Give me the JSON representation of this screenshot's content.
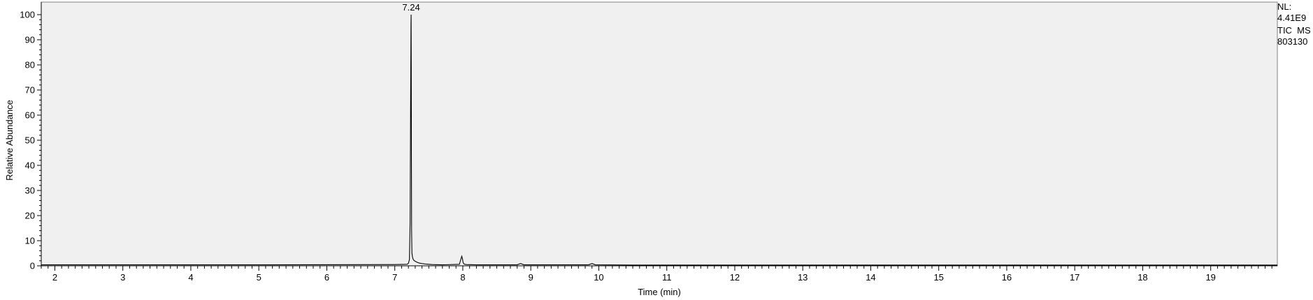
{
  "chart_data": {
    "type": "line",
    "xlabel": "Time (min)",
    "ylabel": "Relative Abundance",
    "xlim": [
      1.8,
      19.98
    ],
    "ylim": [
      0,
      100
    ],
    "x_tick_labels": [
      "2",
      "3",
      "4",
      "5",
      "6",
      "7",
      "8",
      "9",
      "10",
      "11",
      "12",
      "13",
      "14",
      "15",
      "16",
      "17",
      "18",
      "19"
    ],
    "y_tick_labels": [
      "0",
      "10",
      "20",
      "30",
      "40",
      "50",
      "60",
      "70",
      "80",
      "90",
      "100"
    ],
    "peak_labels": [
      {
        "x": 7.24,
        "label": "7.24"
      }
    ],
    "annotations": [
      "NL:",
      "4.41E9",
      "TIC  MS",
      "803130"
    ],
    "plot_background": "#f0f0f0",
    "line_color": "#000000",
    "series": [
      {
        "x": [
          1.8,
          3.0,
          5.0,
          7.0,
          7.18,
          7.2,
          7.215,
          7.225,
          7.232,
          7.238,
          7.24,
          7.243,
          7.247,
          7.252,
          7.26,
          7.27,
          7.28,
          7.3,
          7.33,
          7.36,
          7.4,
          7.45,
          7.55,
          7.7,
          7.95,
          7.97,
          7.985,
          7.995,
          8.005,
          8.02,
          8.05,
          8.2,
          8.8,
          8.85,
          8.9,
          9.85,
          9.9,
          9.95,
          10.5,
          12.0,
          15.0,
          18.0,
          19.98
        ],
        "y": [
          0.4,
          0.4,
          0.4,
          0.5,
          0.6,
          1.0,
          2.5,
          17,
          61,
          96,
          100,
          61,
          14,
          5,
          3.5,
          2.6,
          2.2,
          1.8,
          1.4,
          1.1,
          0.9,
          0.7,
          0.5,
          0.4,
          0.6,
          2.5,
          3.8,
          2.8,
          1.2,
          0.7,
          0.5,
          0.4,
          0.4,
          0.9,
          0.4,
          0.4,
          0.9,
          0.4,
          0.3,
          0.3,
          0.3,
          0.3,
          0.3
        ]
      }
    ]
  }
}
